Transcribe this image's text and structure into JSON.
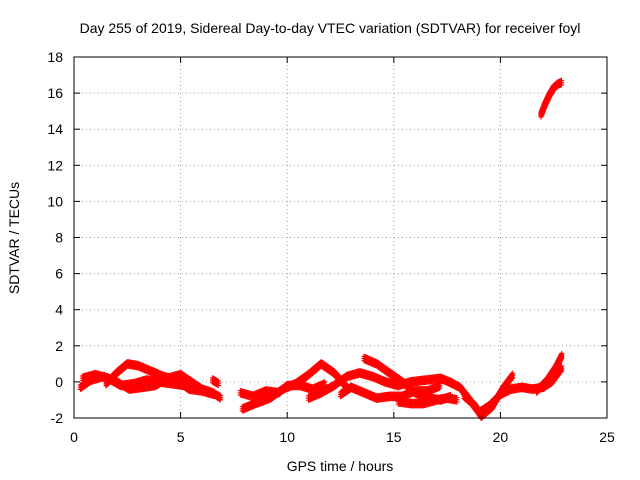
{
  "chart_data": {
    "type": "scatter",
    "title": "Day 255 of 2019, Sidereal Day-to-day VTEC variation (SDTVAR) for receiver foyl",
    "xlabel": "GPS time / hours",
    "ylabel": "SDTVAR / TECUs",
    "xlim": [
      0,
      25
    ],
    "ylim": [
      -2,
      18
    ],
    "x_ticks": [
      0,
      5,
      10,
      15,
      20,
      25
    ],
    "y_ticks": [
      -2,
      0,
      2,
      4,
      6,
      8,
      10,
      12,
      14,
      16,
      18
    ],
    "grid": true,
    "legend": "none",
    "point_marker": "plus",
    "series": [
      {
        "color": "#ff0000",
        "tracks": [
          [
            [
              0.3,
              -0.3
            ],
            [
              0.8,
              0.1
            ],
            [
              1.4,
              0.3
            ],
            [
              2.0,
              0.0
            ],
            [
              2.6,
              -0.4
            ],
            [
              3.2,
              -0.3
            ],
            [
              3.8,
              -0.2
            ],
            [
              4.4,
              0.2
            ],
            [
              5.0,
              0.4
            ],
            [
              5.5,
              0.0
            ],
            [
              6.0,
              -0.4
            ],
            [
              6.5,
              -0.6
            ],
            [
              6.9,
              -0.9
            ]
          ],
          [
            [
              0.4,
              0.2
            ],
            [
              1.0,
              0.4
            ],
            [
              1.6,
              0.2
            ],
            [
              2.2,
              -0.2
            ],
            [
              2.8,
              -0.1
            ],
            [
              3.4,
              0.1
            ],
            [
              4.0,
              0.0
            ],
            [
              4.6,
              -0.1
            ],
            [
              5.2,
              -0.2
            ]
          ],
          [
            [
              1.5,
              -0.1
            ],
            [
              2.0,
              0.5
            ],
            [
              2.5,
              1.0
            ],
            [
              3.0,
              0.9
            ],
            [
              3.6,
              0.6
            ],
            [
              4.2,
              0.3
            ],
            [
              4.8,
              0.1
            ],
            [
              5.4,
              -0.4
            ],
            [
              6.0,
              -0.5
            ],
            [
              6.6,
              -0.7
            ]
          ],
          [
            [
              6.5,
              0.1
            ],
            [
              6.8,
              -0.1
            ]
          ],
          [
            [
              7.8,
              -0.6
            ],
            [
              8.4,
              -0.8
            ],
            [
              9.0,
              -0.5
            ],
            [
              9.6,
              -0.6
            ],
            [
              10.0,
              -0.2
            ],
            [
              10.6,
              -0.2
            ],
            [
              11.2,
              -0.4
            ],
            [
              11.8,
              -0.1
            ]
          ],
          [
            [
              7.9,
              -1.5
            ],
            [
              8.5,
              -1.2
            ],
            [
              9.2,
              -0.9
            ],
            [
              9.8,
              -0.4
            ],
            [
              10.4,
              -0.1
            ],
            [
              11.0,
              0.4
            ],
            [
              11.6,
              1.0
            ],
            [
              12.2,
              0.5
            ],
            [
              12.8,
              -0.3
            ]
          ],
          [
            [
              11.0,
              -0.9
            ],
            [
              11.6,
              -0.6
            ],
            [
              12.2,
              -0.2
            ],
            [
              12.8,
              0.3
            ],
            [
              13.4,
              0.5
            ],
            [
              14.0,
              0.3
            ],
            [
              14.6,
              0.0
            ],
            [
              15.2,
              -0.2
            ],
            [
              15.8,
              0.0
            ],
            [
              16.5,
              0.1
            ],
            [
              17.2,
              0.2
            ],
            [
              17.8,
              -0.1
            ]
          ],
          [
            [
              12.5,
              -0.7
            ],
            [
              13.0,
              -0.3
            ],
            [
              13.6,
              -0.6
            ],
            [
              14.2,
              -0.9
            ],
            [
              14.8,
              -0.8
            ],
            [
              15.4,
              -0.8
            ],
            [
              16.0,
              -0.5
            ],
            [
              16.6,
              -0.5
            ],
            [
              17.2,
              -0.2
            ]
          ],
          [
            [
              13.6,
              1.3
            ],
            [
              14.2,
              1.0
            ],
            [
              14.8,
              0.5
            ],
            [
              15.4,
              0.0
            ],
            [
              16.0,
              -0.6
            ],
            [
              16.6,
              -0.9
            ],
            [
              17.2,
              -1.0
            ],
            [
              17.7,
              -0.8
            ]
          ],
          [
            [
              15.2,
              -1.1
            ],
            [
              15.8,
              -1.2
            ],
            [
              16.4,
              -1.2
            ],
            [
              17.0,
              -1.0
            ],
            [
              17.5,
              -0.9
            ],
            [
              18.0,
              -1.0
            ]
          ],
          [
            [
              17.6,
              0.0
            ],
            [
              18.1,
              -0.3
            ],
            [
              18.5,
              -0.9
            ],
            [
              19.0,
              -1.7
            ],
            [
              19.5,
              -1.3
            ],
            [
              20.0,
              -0.7
            ],
            [
              20.5,
              -0.4
            ],
            [
              21.0,
              -0.3
            ],
            [
              21.5,
              -0.4
            ],
            [
              22.0,
              -0.3
            ],
            [
              22.4,
              0.0
            ],
            [
              22.9,
              0.8
            ]
          ],
          [
            [
              18.3,
              -0.8
            ],
            [
              18.8,
              -1.3
            ],
            [
              19.1,
              -1.9
            ],
            [
              19.6,
              -1.4
            ],
            [
              20.1,
              -0.4
            ],
            [
              20.6,
              0.4
            ]
          ],
          [
            [
              21.7,
              -0.5
            ],
            [
              22.2,
              0.1
            ],
            [
              22.6,
              0.8
            ],
            [
              22.9,
              1.5
            ]
          ],
          [
            [
              21.9,
              14.8
            ],
            [
              22.1,
              15.4
            ],
            [
              22.3,
              15.9
            ],
            [
              22.5,
              16.3
            ],
            [
              22.7,
              16.5
            ],
            [
              22.9,
              16.6
            ]
          ]
        ]
      }
    ]
  }
}
